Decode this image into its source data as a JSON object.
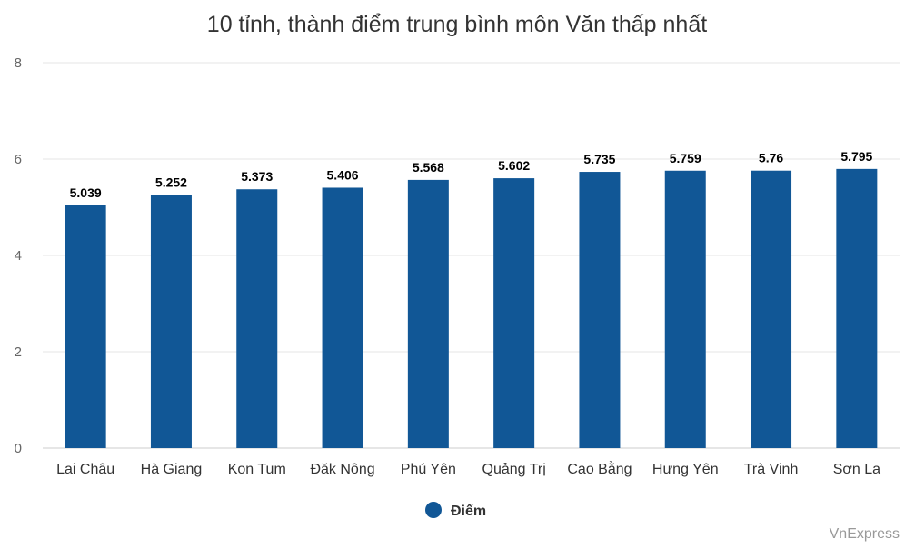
{
  "credit": "VnExpress",
  "colors": {
    "bar": "#115796",
    "grid": "#e6e6e6",
    "baseline": "#cccccc"
  },
  "chart_data": {
    "type": "bar",
    "title": "10 tỉnh, thành điểm trung bình môn Văn thấp nhất",
    "xlabel": "",
    "ylabel": "",
    "ylim": [
      0,
      8
    ],
    "yticks": [
      0,
      2,
      4,
      6,
      8
    ],
    "grid": true,
    "legend_position": "bottom",
    "categories": [
      "Lai Châu",
      "Hà Giang",
      "Kon Tum",
      "Đăk Nông",
      "Phú Yên",
      "Quảng Trị",
      "Cao Bằng",
      "Hưng Yên",
      "Trà Vinh",
      "Sơn La"
    ],
    "series": [
      {
        "name": "Điểm",
        "values": [
          5.039,
          5.252,
          5.373,
          5.406,
          5.568,
          5.602,
          5.735,
          5.759,
          5.76,
          5.795
        ],
        "labels": [
          "5.039",
          "5.252",
          "5.373",
          "5.406",
          "5.568",
          "5.602",
          "5.735",
          "5.759",
          "5.76",
          "5.795"
        ]
      }
    ]
  }
}
